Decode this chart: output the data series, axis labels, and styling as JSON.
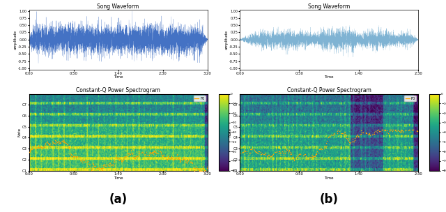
{
  "title_waveform": "Song Waveform",
  "title_spectrogram": "Constant-Q Power Spectrogram",
  "xlabel_time": "Time",
  "ylabel_amplitude": "amplitude",
  "ylabel_note": "Note",
  "label_a": "(a)",
  "label_b": "(b)",
  "waveform_color_a": "#4472c4",
  "waveform_color_b": "#7fb3d3",
  "waveform_xticks_a": [
    "0:00",
    "0:50",
    "1:40",
    "2:30",
    "3:20"
  ],
  "waveform_xticks_b": [
    "0:00",
    "0:50",
    "1:40",
    "2:30"
  ],
  "waveform_yticks_a": [
    "1.00",
    "0.75",
    "0.50",
    "0.25",
    "0.00",
    "-0.25",
    "-0.50",
    "-0.75",
    "-1.00"
  ],
  "waveform_yticks_b": [
    "1.00",
    "0.75",
    "0.50",
    "0.25",
    "0.00",
    "-0.25",
    "-0.50",
    "-0.75",
    "-1.00"
  ],
  "note_labels": [
    "C1",
    "C2",
    "C3",
    "C4",
    "C5",
    "C6",
    "C7"
  ],
  "spec_xticks_a": [
    "0:00",
    "0:50",
    "1:40",
    "2:30",
    "3:20"
  ],
  "spec_xticks_b": [
    "0:00",
    "0:50",
    "1:40",
    "2:30"
  ],
  "legend_label": "F0",
  "n_notes": 84,
  "fig_label_fontsize": 12
}
